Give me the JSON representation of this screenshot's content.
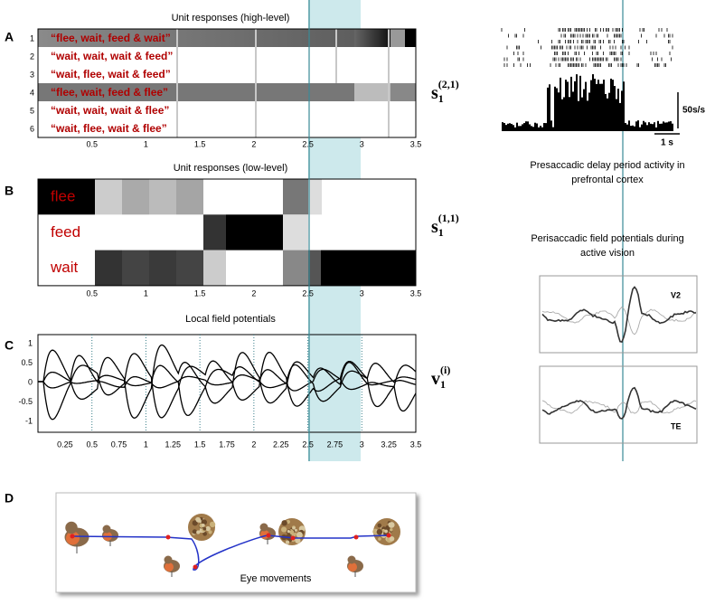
{
  "panel_labels": [
    "A",
    "B",
    "C",
    "D"
  ],
  "panel_a": {
    "title": "Unit responses (high-level)",
    "row_numbers": [
      "1",
      "2",
      "3",
      "4",
      "5",
      "6"
    ],
    "rows": [
      "“flee, wait, feed & wait”",
      "“wait, wait, wait & feed”",
      "“wait, flee, wait & feed”",
      "“flee, wait, feed & flee”",
      "“wait, wait, wait & flee”",
      "“wait, flee, wait & flee”"
    ],
    "x_ticks": [
      "0.5",
      "1",
      "1.5",
      "2",
      "2.5",
      "3",
      "3.5"
    ],
    "variable": {
      "base": "s",
      "sub": "1",
      "sup": "(2,1)"
    }
  },
  "panel_b": {
    "title": "Unit responses (low-level)",
    "rows": [
      "flee",
      "feed",
      "wait"
    ],
    "x_ticks": [
      "0.5",
      "1",
      "1.5",
      "2",
      "2.5",
      "3",
      "3.5"
    ],
    "variable": {
      "base": "s",
      "sub": "1",
      "sup": "(1,1)"
    }
  },
  "panel_c": {
    "title": "Local field potentials",
    "y_ticks": [
      "1",
      "0.5",
      "0",
      "-0.5",
      "-1"
    ],
    "x_ticks": [
      "0.25",
      "0.5",
      "0.75",
      "1",
      "1.25",
      "1.5",
      "1.75",
      "2",
      "2.25",
      "2.5",
      "2.75",
      "3",
      "3.25",
      "3.5"
    ],
    "variable": {
      "base": "v",
      "sub": "1",
      "sup": "(i)"
    }
  },
  "panel_d": {
    "caption": "Eye movements"
  },
  "recordings": {
    "scale_rate": "50s/s",
    "scale_time": "1 s",
    "caption_top": [
      "Presaccadic delay period activity in",
      "prefrontal cortex"
    ],
    "caption_bottom": [
      "Perisaccadic field potentials during",
      "active vision"
    ],
    "area_labels": [
      "V2",
      "TE"
    ]
  }
}
